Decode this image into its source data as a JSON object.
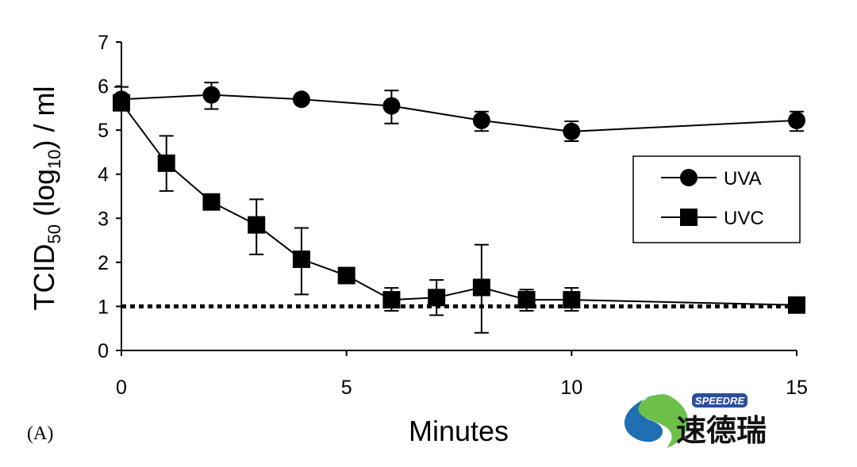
{
  "chart_data": {
    "type": "line",
    "panel_label": "(A)",
    "xlabel": "Minutes",
    "ylabel_parts": [
      "TCID",
      "50",
      " (log",
      "10",
      ") / ml"
    ],
    "xlim": [
      0,
      15
    ],
    "ylim": [
      0,
      7
    ],
    "xticks": [
      0,
      5,
      10,
      15
    ],
    "yticks": [
      0,
      1,
      2,
      3,
      4,
      5,
      6,
      7
    ],
    "grid": false,
    "legend_placement": "right",
    "detection_limit": 1,
    "series": [
      {
        "name": "UVA",
        "marker": "circle",
        "x": [
          0,
          2,
          4,
          6,
          8,
          10,
          15
        ],
        "y": [
          5.7,
          5.8,
          5.7,
          5.55,
          5.22,
          4.97,
          5.22
        ],
        "err_low": [
          5.45,
          5.48,
          null,
          5.15,
          4.98,
          4.75,
          4.98
        ],
        "err_high": [
          5.98,
          6.08,
          null,
          5.9,
          5.42,
          5.2,
          5.42
        ]
      },
      {
        "name": "UVC",
        "marker": "square",
        "x": [
          0,
          1,
          2,
          3,
          4,
          5,
          6,
          7,
          8,
          9,
          10,
          15
        ],
        "y": [
          5.62,
          4.25,
          3.37,
          2.85,
          2.07,
          1.7,
          1.15,
          1.2,
          1.43,
          1.15,
          1.15,
          1.03
        ],
        "err_low": [
          null,
          3.62,
          null,
          2.18,
          1.27,
          null,
          0.9,
          0.8,
          0.4,
          0.9,
          0.9,
          null
        ],
        "err_high": [
          null,
          4.87,
          null,
          3.43,
          2.78,
          null,
          1.42,
          1.6,
          2.4,
          1.38,
          1.42,
          null
        ]
      }
    ]
  },
  "logo": {
    "latin": "SPEEDRE",
    "chinese": "速德瑞"
  }
}
